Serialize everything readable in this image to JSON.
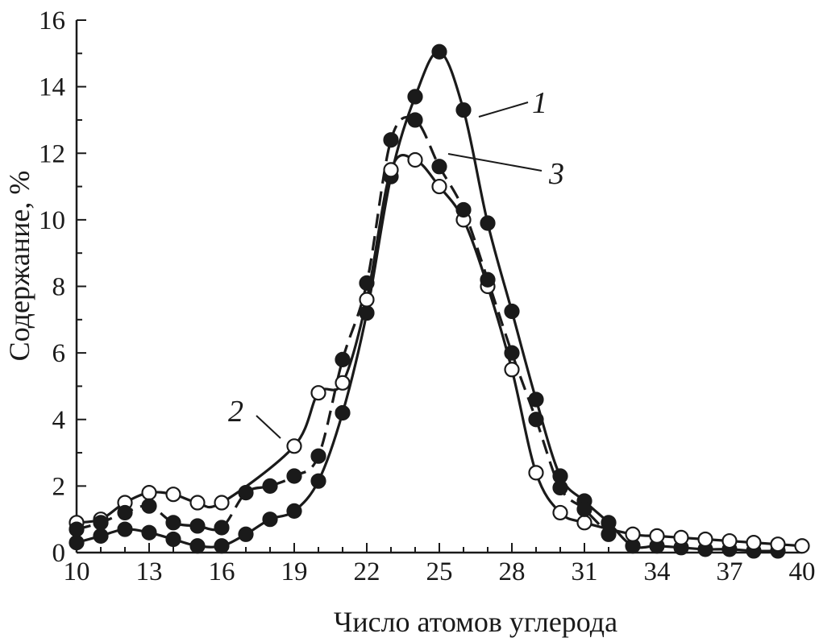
{
  "chart_data": {
    "type": "line",
    "xlabel": "Число атомов углерода",
    "ylabel": "Содержание, %",
    "xlim": [
      10,
      40
    ],
    "ylim": [
      0,
      16
    ],
    "xticks": [
      "10",
      "13",
      "16",
      "19",
      "22",
      "25",
      "28",
      "31",
      "34",
      "37",
      "40"
    ],
    "yticks": [
      "0",
      "2",
      "4",
      "6",
      "8",
      "10",
      "12",
      "14",
      "16"
    ],
    "grid": false,
    "series": [
      {
        "name": "1",
        "marker": "filled-circle",
        "line": "solid",
        "x": [
          10,
          11,
          12,
          13,
          14,
          15,
          16,
          17,
          18,
          19,
          20,
          21,
          22,
          23,
          24,
          25,
          26,
          27,
          28,
          29,
          30,
          31,
          32,
          33,
          34,
          35,
          36,
          37,
          38,
          39
        ],
        "y": [
          0.3,
          0.5,
          0.7,
          0.6,
          0.4,
          0.2,
          0.2,
          0.55,
          1.0,
          1.25,
          2.15,
          4.2,
          7.2,
          11.3,
          13.7,
          15.05,
          13.3,
          9.9,
          7.25,
          4.6,
          2.3,
          1.55,
          0.9,
          0.2,
          0.2,
          0.15,
          0.1,
          0.1,
          0.05,
          0.05
        ]
      },
      {
        "name": "2",
        "marker": "open-circle",
        "line": "solid",
        "x": [
          10,
          11,
          12,
          13,
          14,
          15,
          16,
          19,
          20,
          21,
          22,
          23,
          24,
          25,
          26,
          27,
          28,
          29,
          30,
          31,
          33,
          34,
          35,
          36,
          37,
          38,
          39,
          40
        ],
        "y": [
          0.9,
          1.0,
          1.5,
          1.8,
          1.75,
          1.5,
          1.5,
          3.2,
          4.8,
          5.1,
          7.6,
          11.5,
          11.8,
          11.0,
          10.0,
          8.0,
          5.5,
          2.4,
          1.2,
          0.9,
          0.55,
          0.5,
          0.45,
          0.4,
          0.35,
          0.3,
          0.25,
          0.2
        ]
      },
      {
        "name": "3",
        "marker": "filled-circle",
        "line": "dashed",
        "x": [
          10,
          11,
          12,
          13,
          14,
          15,
          16,
          17,
          18,
          19,
          20,
          21,
          22,
          23,
          24,
          25,
          26,
          27,
          28,
          29,
          30,
          31,
          32
        ],
        "y": [
          0.7,
          0.9,
          1.2,
          1.4,
          0.9,
          0.8,
          0.75,
          1.8,
          2.0,
          2.3,
          2.9,
          5.8,
          8.1,
          12.4,
          13.0,
          11.6,
          10.3,
          8.2,
          6.0,
          4.0,
          1.95,
          1.3,
          0.55
        ]
      }
    ],
    "annotations": [
      {
        "text": "1",
        "series": "1"
      },
      {
        "text": "2",
        "series": "2"
      },
      {
        "text": "3",
        "series": "3"
      }
    ]
  }
}
